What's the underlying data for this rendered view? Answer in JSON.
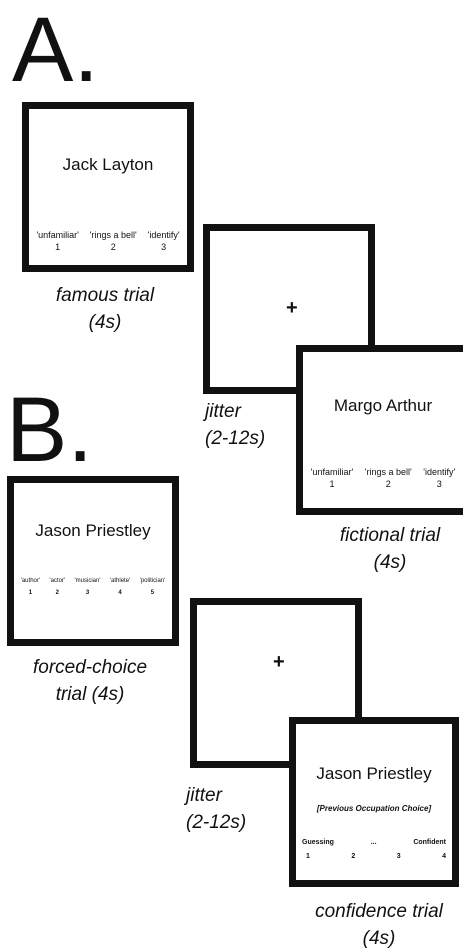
{
  "panelA": {
    "label": "A.",
    "famous": {
      "name": "Jack Layton",
      "options": [
        "'unfamiliar'",
        "'rings a bell'",
        "'identify'"
      ],
      "keys": [
        "1",
        "2",
        "3"
      ],
      "caption": [
        "famous trial",
        "(4s)"
      ]
    },
    "jitter": {
      "symbol": "+",
      "caption": [
        "jitter",
        "(2-12s)"
      ]
    },
    "fictional": {
      "name": "Margo Arthur",
      "options": [
        "'unfamiliar'",
        "'rings a bell'",
        "'identify'"
      ],
      "keys": [
        "1",
        "2",
        "3"
      ],
      "caption": [
        "fictional trial",
        "(4s)"
      ]
    }
  },
  "panelB": {
    "label": "B.",
    "forced": {
      "name": "Jason Priestley",
      "options": [
        "'author'",
        "'actor'",
        "'musician'",
        "'athlete'",
        "'politician'"
      ],
      "keys": [
        "1",
        "2",
        "3",
        "4",
        "5"
      ],
      "caption": [
        "forced-choice",
        "trial (4s)"
      ]
    },
    "jitter": {
      "symbol": "+",
      "caption": [
        "jitter",
        "(2-12s)"
      ]
    },
    "confidence": {
      "name": "Jason Priestley",
      "prompt": "[Previous Occupation Choice]",
      "scale": [
        "Guessing",
        "...",
        "Confident"
      ],
      "keys": [
        "1",
        "2",
        "3",
        "4"
      ],
      "caption": [
        "confidence trial",
        "(4s)"
      ]
    }
  }
}
